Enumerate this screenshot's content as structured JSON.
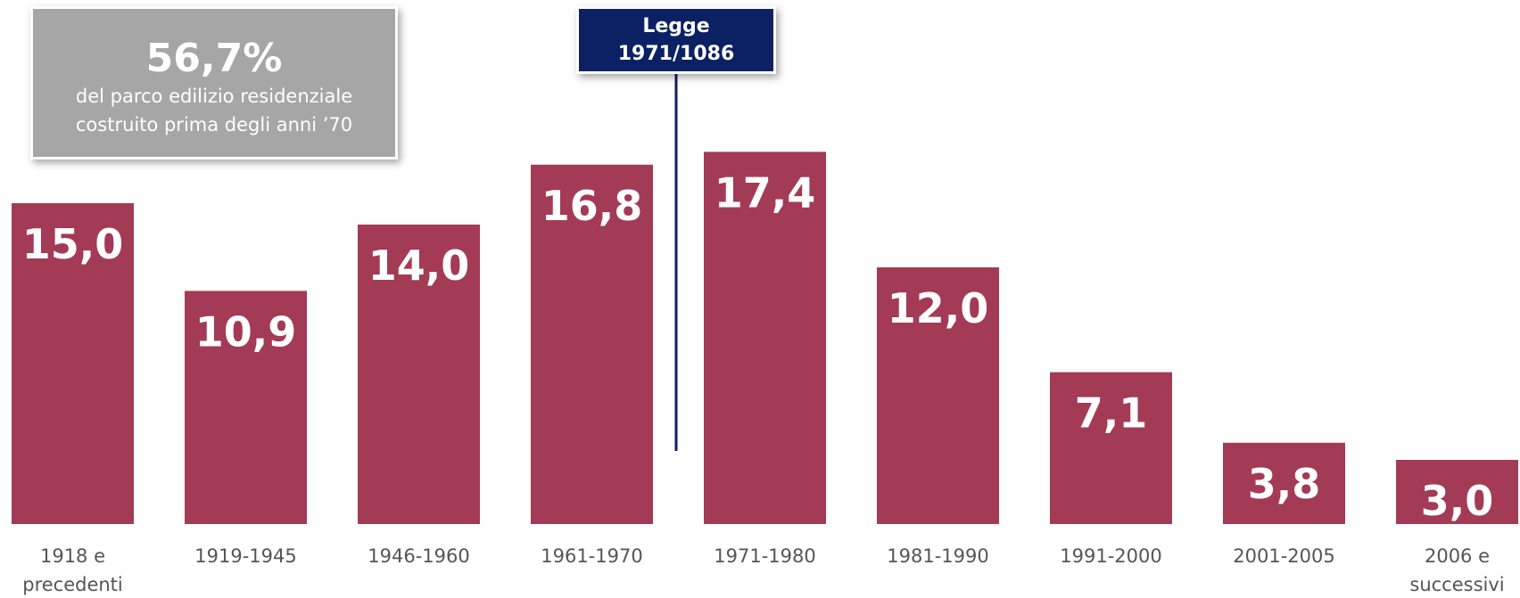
{
  "chart_data": {
    "type": "bar",
    "categories": [
      "1918 e precedenti",
      "1919-1945",
      "1946-1960",
      "1961-1970",
      "1971-1980",
      "1981-1990",
      "1991-2000",
      "2001-2005",
      "2006 e successivi"
    ],
    "values": [
      15.0,
      10.9,
      14.0,
      16.8,
      17.4,
      12.0,
      7.1,
      3.8,
      3.0
    ],
    "value_labels": [
      "15,0",
      "10,9",
      "14,0",
      "16,8",
      "17,4",
      "12,0",
      "7,1",
      "3,8",
      "3,0"
    ],
    "color": "#a33a56",
    "callout": {
      "value": 56.7,
      "label": "56,7%",
      "lines": [
        "del parco edilizio residenziale",
        "costruito prima degli anni ’70"
      ]
    },
    "marker": {
      "lines": [
        "Legge",
        "1971/1086"
      ]
    }
  }
}
